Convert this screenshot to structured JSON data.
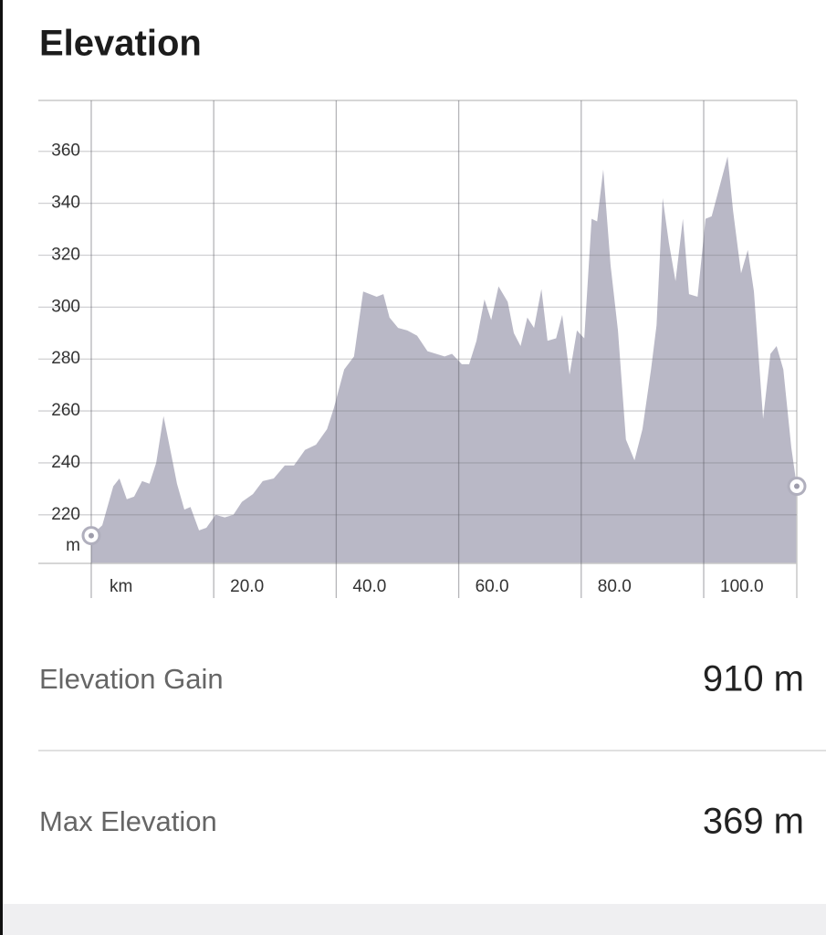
{
  "title": "Elevation",
  "chart_data": {
    "type": "area",
    "color": "#b9b8c6",
    "x_label": "km",
    "y_label": "m",
    "xlim": [
      -8.64,
      115.2
    ],
    "ylim": [
      201.3,
      379.6
    ],
    "xticks": [
      {
        "value": 0,
        "label": "km"
      },
      {
        "value": 20,
        "label": "20.0"
      },
      {
        "value": 40,
        "label": "40.0"
      },
      {
        "value": 60,
        "label": "60.0"
      },
      {
        "value": 80,
        "label": "80.0"
      },
      {
        "value": 100,
        "label": "100.0"
      }
    ],
    "yticks": [
      220,
      240,
      260,
      280,
      300,
      320,
      340,
      360
    ],
    "grid": true,
    "x": [
      0,
      1.8,
      3.6,
      4.6,
      5.8,
      7.0,
      8.3,
      9.5,
      10.6,
      11.8,
      13.0,
      14.0,
      15.2,
      16.2,
      17.6,
      18.8,
      20.3,
      21.8,
      23.2,
      24.6,
      26.4,
      28.0,
      29.8,
      31.6,
      33.1,
      34.9,
      36.7,
      38.5,
      39.6,
      41.3,
      42.9,
      44.4,
      46.6,
      47.7,
      48.7,
      50.1,
      51.6,
      53.2,
      54.9,
      56.3,
      57.7,
      58.9,
      60.5,
      61.7,
      62.9,
      64.2,
      65.3,
      66.5,
      68.0,
      69.0,
      70.1,
      71.2,
      72.3,
      73.5,
      74.5,
      75.9,
      76.9,
      78.1,
      79.3,
      80.5,
      81.7,
      82.6,
      83.6,
      84.8,
      86.0,
      87.3,
      88.7,
      90.0,
      91.4,
      92.3,
      93.3,
      94.3,
      95.4,
      96.6,
      97.6,
      99.0,
      100.3,
      101.3,
      103.9,
      104.8,
      106.1,
      107.2,
      108.2,
      109.7,
      110.9,
      111.9,
      113.0,
      114.3,
      115.2
    ],
    "values": [
      212,
      216,
      231,
      234,
      226,
      227,
      233,
      232,
      240,
      258,
      244,
      232,
      222,
      223,
      214,
      215,
      220,
      219,
      220,
      225,
      228,
      233,
      234,
      239,
      239,
      245,
      247,
      253,
      261,
      276,
      281,
      306,
      304,
      305,
      296,
      292,
      291,
      289,
      283,
      282,
      281,
      282,
      278,
      278,
      287,
      303,
      295,
      308,
      302,
      290,
      285,
      296,
      292,
      307,
      287,
      288,
      297,
      274,
      291,
      288,
      334,
      333,
      353,
      316,
      291,
      249,
      241,
      253,
      276,
      293,
      342,
      325,
      310,
      334,
      305,
      304,
      334,
      335,
      358,
      337,
      313,
      322,
      306,
      257,
      282,
      285,
      276,
      246,
      231
    ]
  },
  "stats": [
    {
      "label": "Elevation Gain",
      "value": "910 m"
    },
    {
      "label": "Max Elevation",
      "value": "369 m"
    }
  ]
}
